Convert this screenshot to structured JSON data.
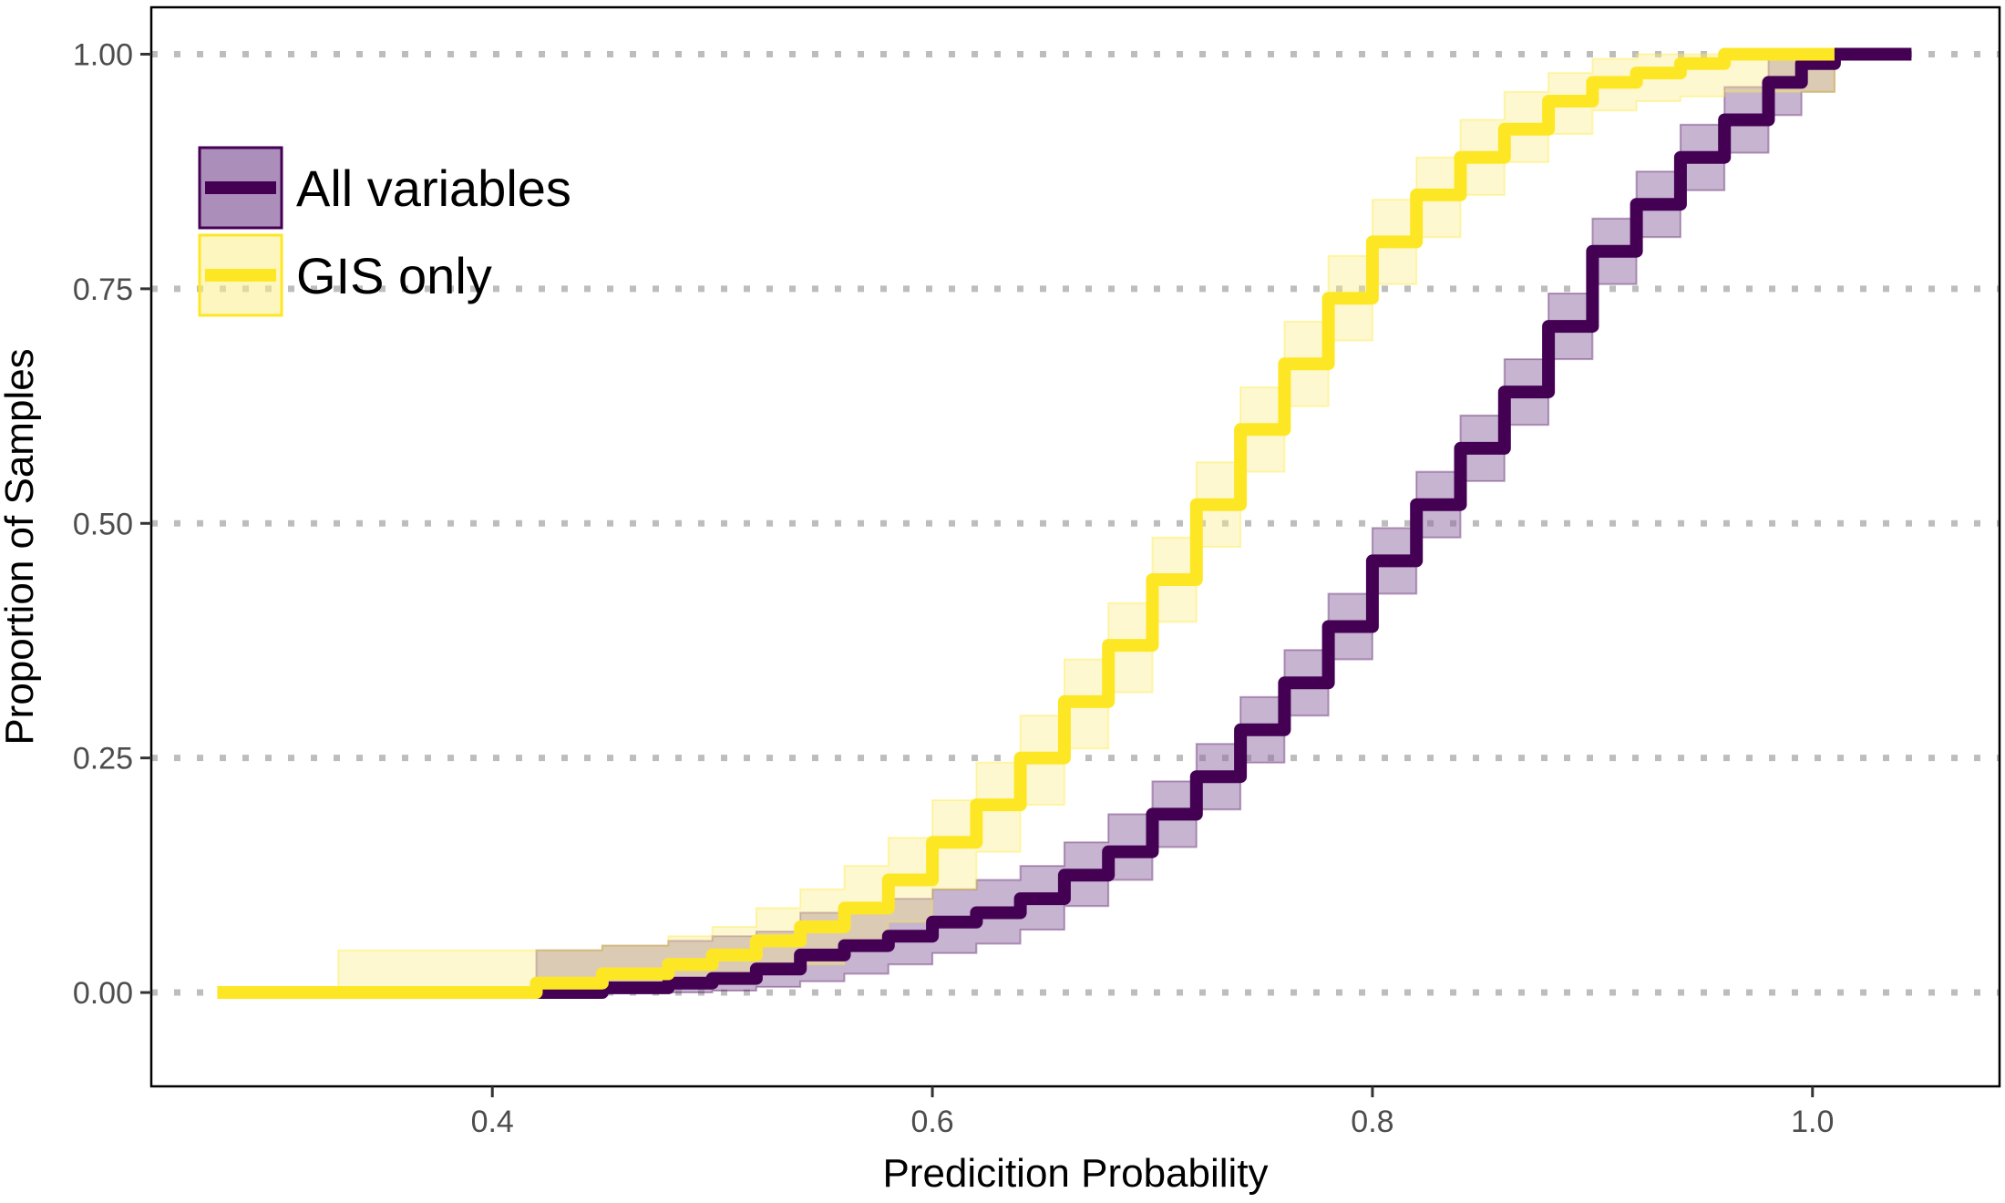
{
  "chart_data": {
    "type": "line",
    "title": "",
    "xlabel": "Predicition Probability",
    "ylabel": "Proportion of Samples",
    "xlim": [
      0.245,
      1.085
    ],
    "ylim": [
      -0.1,
      1.05
    ],
    "xticks": [
      0.4,
      0.6,
      0.8,
      1.0
    ],
    "xtick_labels": [
      "0.4",
      "0.6",
      "0.8",
      "1.0"
    ],
    "yticks": [
      0.0,
      0.25,
      0.5,
      0.75,
      1.0
    ],
    "ytick_labels": [
      "0.00",
      "0.25",
      "0.50",
      "0.75",
      "1.00"
    ],
    "grid": "horizontal dotted at y ticks",
    "legend_position": "top-left",
    "series": [
      {
        "name": "All variables",
        "color": "#440154",
        "band_color": "#8f6aa3",
        "x": [
          0.37,
          0.42,
          0.45,
          0.48,
          0.5,
          0.52,
          0.54,
          0.56,
          0.58,
          0.6,
          0.62,
          0.64,
          0.66,
          0.68,
          0.7,
          0.72,
          0.74,
          0.76,
          0.78,
          0.8,
          0.82,
          0.84,
          0.86,
          0.88,
          0.9,
          0.92,
          0.94,
          0.96,
          0.98,
          0.995,
          1.01,
          1.045
        ],
        "y": [
          0.0,
          0.0,
          0.005,
          0.01,
          0.015,
          0.025,
          0.04,
          0.05,
          0.06,
          0.075,
          0.085,
          0.1,
          0.125,
          0.15,
          0.19,
          0.23,
          0.28,
          0.33,
          0.39,
          0.46,
          0.52,
          0.58,
          0.64,
          0.71,
          0.79,
          0.84,
          0.89,
          0.93,
          0.97,
          0.99,
          1.0,
          1.0
        ],
        "band_lower": [
          0.0,
          0.0,
          0.0,
          0.0,
          0.002,
          0.006,
          0.012,
          0.02,
          0.03,
          0.042,
          0.052,
          0.067,
          0.092,
          0.12,
          0.155,
          0.195,
          0.245,
          0.295,
          0.355,
          0.425,
          0.485,
          0.545,
          0.605,
          0.675,
          0.755,
          0.805,
          0.855,
          0.895,
          0.935,
          0.96,
          1.0,
          1.0
        ],
        "band_upper": [
          0.0,
          0.045,
          0.05,
          0.055,
          0.06,
          0.065,
          0.085,
          0.09,
          0.1,
          0.11,
          0.12,
          0.135,
          0.16,
          0.19,
          0.225,
          0.265,
          0.315,
          0.365,
          0.425,
          0.495,
          0.555,
          0.615,
          0.675,
          0.745,
          0.825,
          0.875,
          0.925,
          0.965,
          1.0,
          1.0,
          1.0,
          1.0
        ]
      },
      {
        "name": "GIS only",
        "color": "#fde725",
        "band_color": "#fdee8a",
        "x": [
          0.275,
          0.33,
          0.42,
          0.45,
          0.48,
          0.5,
          0.52,
          0.54,
          0.56,
          0.58,
          0.6,
          0.62,
          0.64,
          0.66,
          0.68,
          0.7,
          0.72,
          0.74,
          0.76,
          0.78,
          0.8,
          0.82,
          0.84,
          0.86,
          0.88,
          0.9,
          0.92,
          0.94,
          0.96,
          1.01
        ],
        "y": [
          0.0,
          0.0,
          0.01,
          0.02,
          0.03,
          0.04,
          0.055,
          0.07,
          0.09,
          0.12,
          0.16,
          0.2,
          0.25,
          0.31,
          0.37,
          0.44,
          0.52,
          0.6,
          0.67,
          0.74,
          0.8,
          0.85,
          0.89,
          0.92,
          0.95,
          0.97,
          0.98,
          0.99,
          1.0,
          1.0
        ],
        "band_lower": [
          0.0,
          0.0,
          0.0,
          0.003,
          0.008,
          0.013,
          0.02,
          0.03,
          0.045,
          0.075,
          0.11,
          0.15,
          0.2,
          0.26,
          0.32,
          0.395,
          0.475,
          0.555,
          0.625,
          0.695,
          0.755,
          0.805,
          0.85,
          0.885,
          0.915,
          0.94,
          0.95,
          0.955,
          0.96,
          1.0
        ],
        "band_upper": [
          0.0,
          0.045,
          0.045,
          0.05,
          0.06,
          0.07,
          0.09,
          0.11,
          0.135,
          0.165,
          0.205,
          0.245,
          0.295,
          0.355,
          0.415,
          0.485,
          0.565,
          0.645,
          0.715,
          0.785,
          0.845,
          0.89,
          0.93,
          0.96,
          0.98,
          0.995,
          1.0,
          1.0,
          1.0,
          1.0
        ]
      }
    ]
  }
}
